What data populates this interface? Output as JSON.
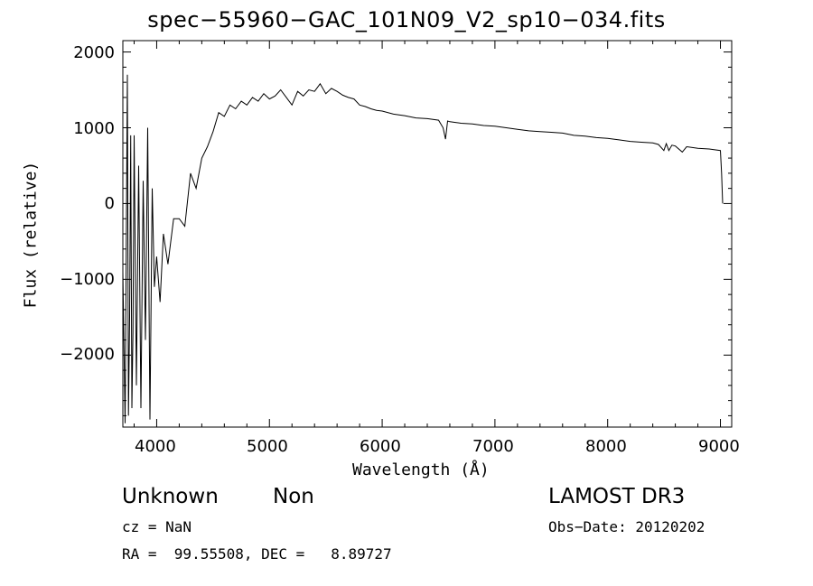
{
  "chart_data": {
    "type": "line",
    "title": "spec−55960−GAC_101N09_V2_sp10−034.fits",
    "xlabel": "Wavelength (Å)",
    "ylabel": "Flux (relative)",
    "xlim": [
      3700,
      9100
    ],
    "ylim": [
      -2950,
      2150
    ],
    "xticks": [
      4000,
      5000,
      6000,
      7000,
      8000,
      9000
    ],
    "yticks": [
      -2000,
      -1000,
      0,
      1000,
      2000
    ],
    "xtick_labels": [
      "4000",
      "5000",
      "6000",
      "7000",
      "8000",
      "9000"
    ],
    "ytick_labels": [
      "−2000",
      "−1000",
      "0",
      "1000",
      "2000"
    ],
    "grid": false,
    "series": [
      {
        "x": [
          3700,
          3720,
          3740,
          3750,
          3760,
          3770,
          3780,
          3790,
          3800,
          3820,
          3840,
          3860,
          3880,
          3900,
          3920,
          3940,
          3960,
          3980,
          4000,
          4030,
          4060,
          4100,
          4150,
          4200,
          4250,
          4300,
          4350,
          4400,
          4450,
          4500,
          4550,
          4600,
          4650,
          4700,
          4750,
          4800,
          4850,
          4900,
          4950,
          5000,
          5050,
          5100,
          5150,
          5200,
          5250,
          5300,
          5350,
          5400,
          5450,
          5500,
          5550,
          5600,
          5650,
          5700,
          5750,
          5800,
          5850,
          5900,
          5950,
          6000,
          6100,
          6200,
          6300,
          6400,
          6500,
          6540,
          6562,
          6580,
          6600,
          6650,
          6700,
          6800,
          6900,
          7000,
          7100,
          7200,
          7300,
          7400,
          7500,
          7600,
          7700,
          7800,
          7900,
          8000,
          8100,
          8200,
          8300,
          8400,
          8450,
          8498,
          8520,
          8542,
          8570,
          8600,
          8662,
          8700,
          8800,
          8900,
          9000,
          9010,
          9020
        ],
        "y": [
          -900,
          -2900,
          1700,
          -2800,
          -1500,
          900,
          -2700,
          -1700,
          900,
          -2400,
          500,
          -2700,
          300,
          -1800,
          1000,
          -2850,
          200,
          -1100,
          -700,
          -1300,
          -400,
          -800,
          -200,
          -200,
          -300,
          400,
          200,
          600,
          750,
          950,
          1200,
          1150,
          1300,
          1250,
          1350,
          1300,
          1400,
          1350,
          1450,
          1380,
          1420,
          1500,
          1400,
          1300,
          1480,
          1420,
          1500,
          1480,
          1580,
          1450,
          1520,
          1480,
          1430,
          1400,
          1380,
          1300,
          1280,
          1250,
          1230,
          1220,
          1180,
          1160,
          1130,
          1120,
          1100,
          1000,
          850,
          1090,
          1080,
          1070,
          1060,
          1050,
          1030,
          1020,
          1000,
          980,
          960,
          950,
          940,
          930,
          900,
          890,
          870,
          860,
          840,
          820,
          810,
          800,
          780,
          700,
          790,
          700,
          770,
          760,
          680,
          750,
          730,
          720,
          700,
          400,
          0
        ]
      }
    ]
  },
  "footer": {
    "object_class": "Unknown",
    "subclass": "Non",
    "survey": "LAMOST DR3",
    "cz": "cz = NaN",
    "obs_date": "Obs−Date: 20120202",
    "coords": "RA =  99.55508, DEC =   8.89727"
  }
}
